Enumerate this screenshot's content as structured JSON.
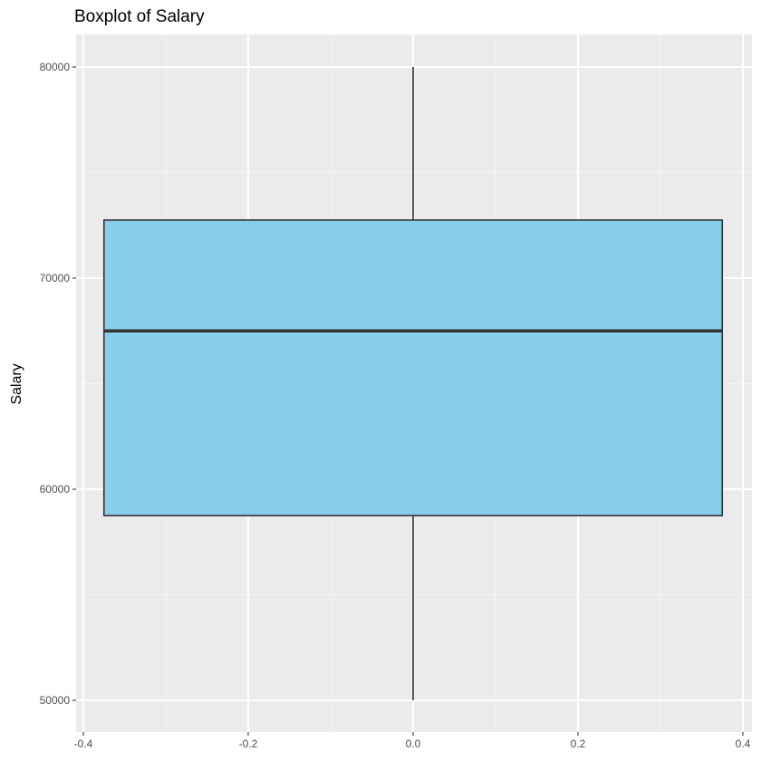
{
  "chart_data": {
    "type": "boxplot",
    "title": "Boxplot of Salary",
    "xlabel": "",
    "ylabel": "Salary",
    "xlim": [
      -0.4,
      0.4
    ],
    "ylim": [
      50000,
      80000
    ],
    "x_ticks": [
      "-0.4",
      "-0.2",
      "0.0",
      "0.2",
      "0.4"
    ],
    "x_tick_values": [
      -0.4,
      -0.2,
      0.0,
      0.2,
      0.4
    ],
    "y_ticks": [
      "50000",
      "60000",
      "70000",
      "80000"
    ],
    "y_tick_values": [
      50000,
      60000,
      70000,
      80000
    ],
    "box": {
      "x_center": 0.0,
      "x_left": -0.375,
      "x_right": 0.375,
      "min": 50000,
      "q1": 58750,
      "median": 67500,
      "q3": 72750,
      "max": 80000
    },
    "grid": true,
    "colors": {
      "panel_background": "#ebebeb",
      "grid_major": "#ffffff",
      "grid_minor": "#f5f5f5",
      "box_fill": "#87ceeb",
      "box_stroke": "#333333"
    }
  }
}
